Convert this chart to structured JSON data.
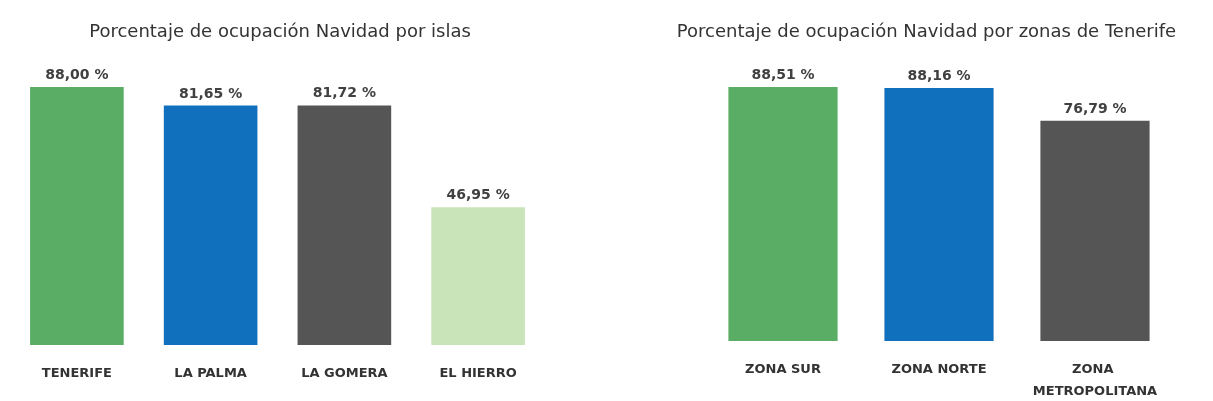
{
  "chart_data": [
    {
      "type": "bar",
      "title": "Porcentaje de ocupación Navidad por islas",
      "categories": [
        "TENERIFE",
        "LA PALMA",
        "LA GOMERA",
        "EL HIERRO"
      ],
      "values": [
        88.0,
        81.65,
        81.72,
        46.95
      ],
      "colors": [
        "#5aad65",
        "#1170be",
        "#555555",
        "#c9e4b9"
      ],
      "value_labels": [
        "88,00 %",
        "81,65 %",
        "81,72 %",
        "46,95 %"
      ]
    },
    {
      "type": "bar",
      "title": "Porcentaje de ocupación Navidad por zonas de Tenerife",
      "categories": [
        "ZONA SUR",
        "ZONA NORTE",
        "ZONA METROPOLITANA"
      ],
      "values": [
        88.51,
        88.16,
        76.79
      ],
      "colors": [
        "#5aad65",
        "#1170be",
        "#555555"
      ],
      "value_labels": [
        "88,51 %",
        "88,16 %",
        "76,79 %"
      ]
    }
  ]
}
